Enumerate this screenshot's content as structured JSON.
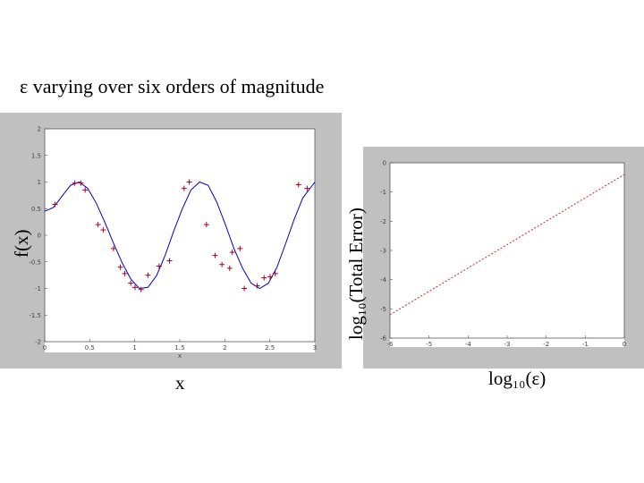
{
  "slide": {
    "heading": "ε varying over six orders of magnitude"
  },
  "chart_data": [
    {
      "type": "line",
      "xlabel": "x",
      "ylabel": "f(x)",
      "inner_xlabel": "x",
      "xlim": [
        0,
        3.14
      ],
      "ylim": [
        -2,
        2
      ],
      "xticks": [
        "0",
        "0.5",
        "1",
        "1.5",
        "2",
        "2.5",
        "3"
      ],
      "yticks": [
        "2",
        "1.5",
        "1",
        "0.5",
        "0",
        "-0.5",
        "-1",
        "-1.5",
        "-2"
      ],
      "grid": false,
      "series": [
        {
          "style": "line",
          "color": "#0000cc",
          "x": [
            0,
            0.1,
            0.2,
            0.3,
            0.4,
            0.5,
            0.6,
            0.7,
            0.8,
            0.9,
            1.0,
            1.1,
            1.2,
            1.3,
            1.4,
            1.5,
            1.6,
            1.7,
            1.8,
            1.9,
            2.0,
            2.1,
            2.2,
            2.3,
            2.4,
            2.5,
            2.6,
            2.7,
            2.8,
            2.9,
            3.0,
            3.14
          ],
          "y": [
            0.45,
            0.52,
            0.73,
            0.94,
            1.0,
            0.88,
            0.6,
            0.24,
            -0.15,
            -0.52,
            -0.82,
            -1.0,
            -0.98,
            -0.76,
            -0.38,
            0.08,
            0.5,
            0.85,
            1.0,
            0.94,
            0.62,
            0.2,
            -0.25,
            -0.62,
            -0.9,
            -1.0,
            -0.9,
            -0.6,
            -0.16,
            0.3,
            0.7,
            1.0
          ]
        },
        {
          "style": "markers",
          "color": "#aa0022",
          "x": [
            0.12,
            0.35,
            0.42,
            0.47,
            0.62,
            0.68,
            0.8,
            0.88,
            0.93,
            1.0,
            1.05,
            1.12,
            1.2,
            1.33,
            1.45,
            1.62,
            1.68,
            1.88,
            1.98,
            2.06,
            2.15,
            2.18,
            2.27,
            2.32,
            2.47,
            2.55,
            2.62,
            2.68,
            2.95,
            3.05
          ],
          "y": [
            0.58,
            0.98,
            0.98,
            0.85,
            0.2,
            0.1,
            -0.25,
            -0.6,
            -0.72,
            -0.9,
            -0.98,
            -1.02,
            -0.75,
            -0.58,
            -0.48,
            0.88,
            1.0,
            0.2,
            -0.38,
            -0.55,
            -0.62,
            -0.32,
            -0.25,
            -1.0,
            -0.95,
            -0.8,
            -0.78,
            -0.72,
            0.95,
            0.88
          ]
        }
      ]
    },
    {
      "type": "line",
      "xlabel": "log₁₀(ε)",
      "ylabel": "log₁₀(Total Error)",
      "xlim": [
        -6,
        0
      ],
      "ylim": [
        -6,
        0
      ],
      "xticks": [
        "-6",
        "-5",
        "-4",
        "-3",
        "-2",
        "-1",
        "0"
      ],
      "yticks": [
        "0",
        "-1",
        "-2",
        "-3",
        "-4",
        "-5",
        "-6"
      ],
      "grid": false,
      "series": [
        {
          "style": "dashed-line",
          "color": "#cc2222",
          "x": [
            -6,
            -5,
            -4,
            -3,
            -2,
            -1,
            0
          ],
          "y": [
            -5.2,
            -4.4,
            -3.6,
            -2.8,
            -2.0,
            -1.2,
            -0.4
          ]
        }
      ]
    }
  ]
}
